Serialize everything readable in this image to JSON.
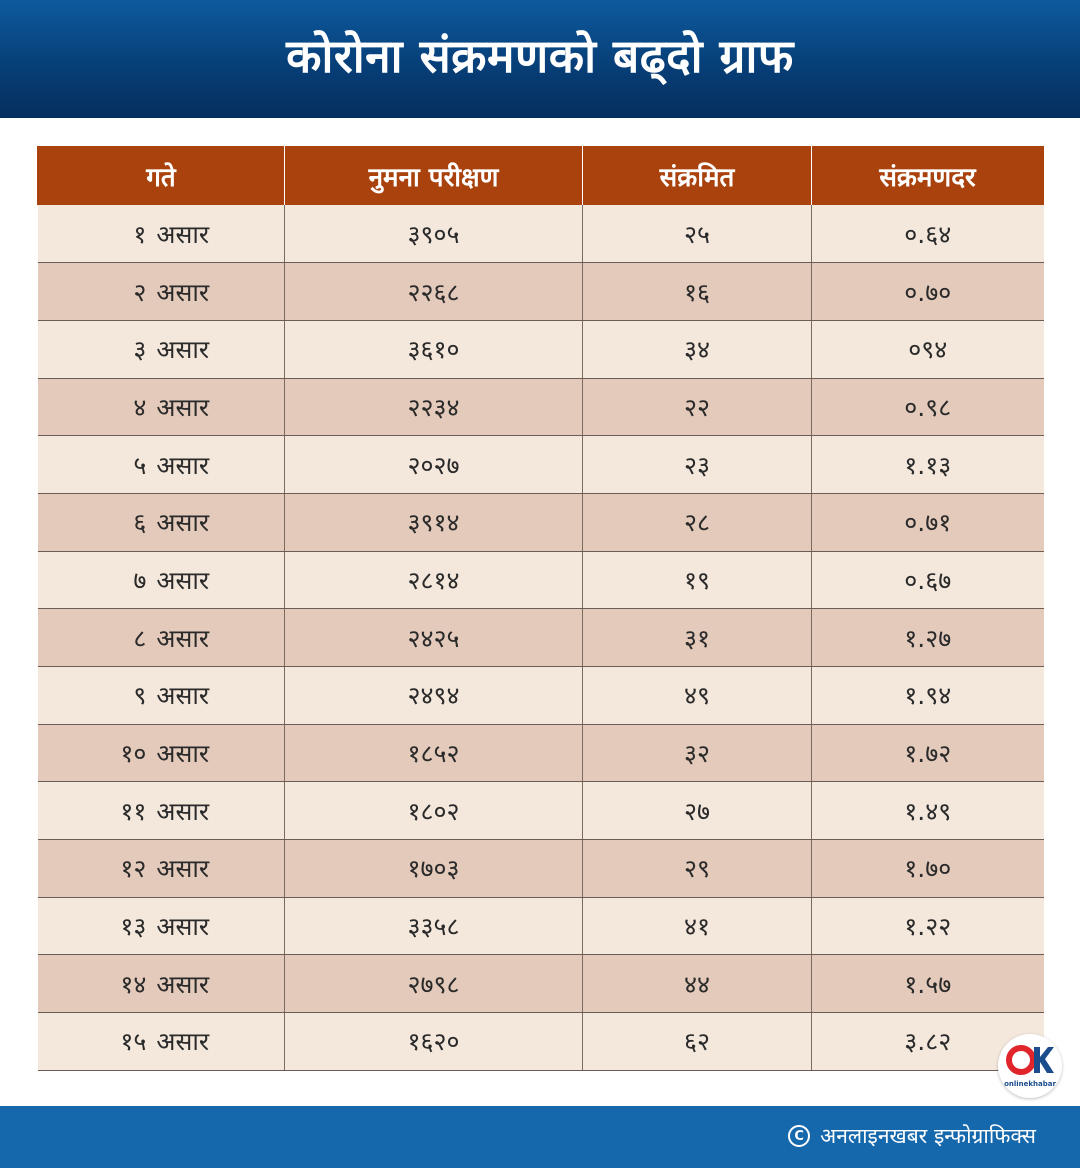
{
  "title": "कोरोना संक्रमणको बढ्दो ग्राफ",
  "chart_data": {
    "type": "table",
    "columns": [
      "गते",
      "नुमना परीक्षण",
      "संक्रमित",
      "संक्रमणदर"
    ],
    "rows": [
      {
        "day": "१",
        "month": "असार",
        "tests": "३९०५",
        "infected": "२५",
        "rate": "०.६४"
      },
      {
        "day": "२",
        "month": "असार",
        "tests": "२२६८",
        "infected": "१६",
        "rate": "०.७०"
      },
      {
        "day": "३",
        "month": "असार",
        "tests": "३६१०",
        "infected": "३४",
        "rate": "०९४"
      },
      {
        "day": "४",
        "month": "असार",
        "tests": "२२३४",
        "infected": "२२",
        "rate": "०.९८"
      },
      {
        "day": "५",
        "month": "असार",
        "tests": "२०२७",
        "infected": "२३",
        "rate": "१.१३"
      },
      {
        "day": "६",
        "month": "असार",
        "tests": "३९१४",
        "infected": "२८",
        "rate": "०.७१"
      },
      {
        "day": "७",
        "month": "असार",
        "tests": "२८१४",
        "infected": "१९",
        "rate": "०.६७"
      },
      {
        "day": "८",
        "month": "असार",
        "tests": "२४२५",
        "infected": "३१",
        "rate": "१.२७"
      },
      {
        "day": "९",
        "month": "असार",
        "tests": "२४९४",
        "infected": "४९",
        "rate": "१.९४"
      },
      {
        "day": "१०",
        "month": "असार",
        "tests": "१८५२",
        "infected": "३२",
        "rate": "१.७२"
      },
      {
        "day": "११",
        "month": "असार",
        "tests": "१८०२",
        "infected": "२७",
        "rate": "१.४९"
      },
      {
        "day": "१२",
        "month": "असार",
        "tests": "१७०३",
        "infected": "२९",
        "rate": "१.७०"
      },
      {
        "day": "१३",
        "month": "असार",
        "tests": "३३५८",
        "infected": "४१",
        "rate": "१.२२"
      },
      {
        "day": "१४",
        "month": "असार",
        "tests": "२७९८",
        "infected": "४४",
        "rate": "१.५७"
      },
      {
        "day": "१५",
        "month": "असार",
        "tests": "१६२०",
        "infected": "६२",
        "rate": "३.८२"
      }
    ]
  },
  "footer": {
    "credit": "अनलाइनखबर इन्फोग्राफिक्स",
    "copyright_icon": "copyright-icon"
  },
  "logo": {
    "text": "onlinekhabar",
    "icon": "ok-logo-icon",
    "colors": {
      "red": "#e0262b",
      "blue": "#1b4c8c"
    }
  },
  "colors": {
    "header_bg": "#073f78",
    "table_header_bg": "#a9420c",
    "row_light": "#f4e8dd",
    "row_dark": "#e3cabb",
    "footer_bg": "#1668ad"
  }
}
